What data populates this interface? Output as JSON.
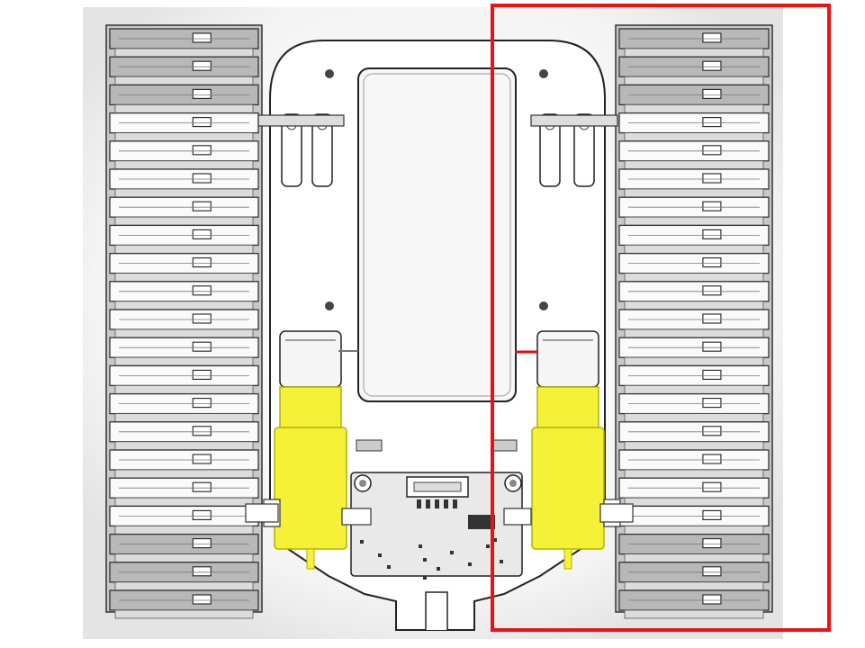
{
  "scene": {
    "subject": "tracked-robot-chassis-top-view",
    "colors": {
      "backdrop": "#f0f0f0",
      "track_light": "#fafafa",
      "track_dark": "#dcdcdc",
      "track_outline": "#333333",
      "frame": "#ffffff",
      "motor_yellow": "#f5f038",
      "motor_yellow_edge": "#b5b000",
      "pcb": "#e6e6e6",
      "wire_red": "#dd1111",
      "highlight": "#ee1111"
    }
  },
  "highlight_box": {
    "color": "#ee1111",
    "marks": "right-track-assembly"
  }
}
